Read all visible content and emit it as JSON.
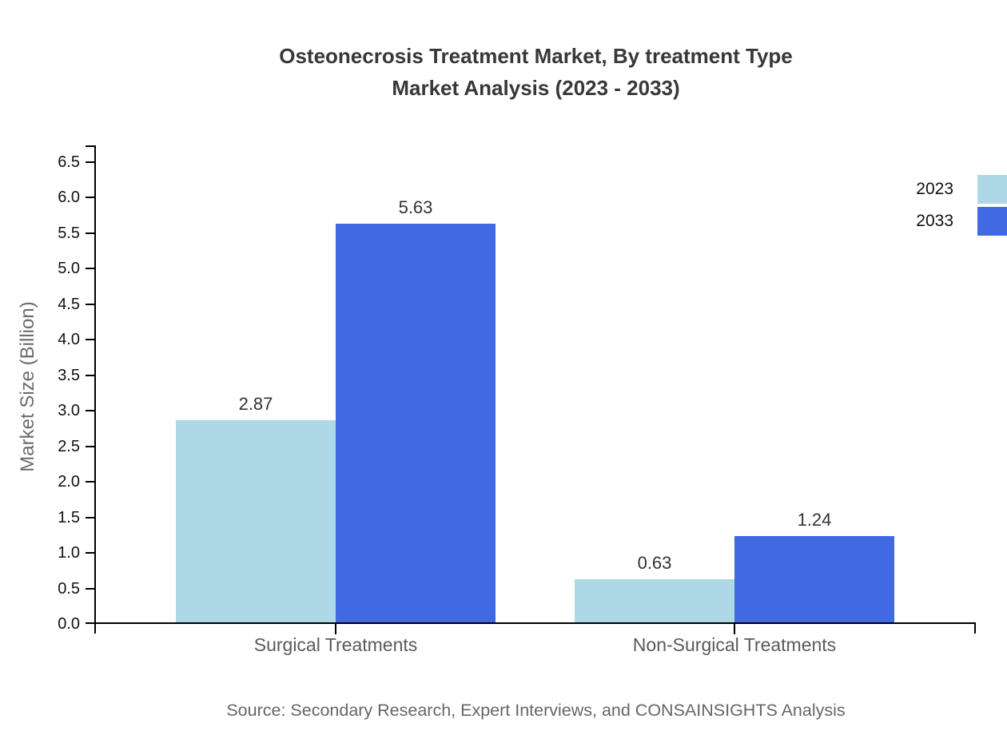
{
  "title": {
    "line1": "Osteonecrosis Treatment Market, By treatment Type",
    "line2": "Market Analysis (2023 - 2033)"
  },
  "source": "Source: Secondary Research, Expert Interviews, and CONSAINSIGHTS Analysis",
  "y_axis": {
    "label": "Market Size (Billion)"
  },
  "legend": [
    {
      "label": "2023",
      "color": "#ADD8E6"
    },
    {
      "label": "2033",
      "color": "#4169E1"
    }
  ],
  "chart_data": {
    "type": "bar",
    "title": "Osteonecrosis Treatment Market, By treatment Type Market Analysis (2023 - 2033)",
    "categories": [
      "Surgical Treatments",
      "Non-Surgical Treatments"
    ],
    "series": [
      {
        "name": "2023",
        "color": "#ADD8E6",
        "values": [
          2.87,
          0.63
        ]
      },
      {
        "name": "2033",
        "color": "#4169E1",
        "values": [
          5.63,
          1.24
        ]
      }
    ],
    "xlabel": "",
    "ylabel": "Market Size (Billion)",
    "ylim": [
      0,
      6.5
    ],
    "ytick_step": 0.5,
    "ytick_labels": [
      "0.0",
      "0.5",
      "1.0",
      "1.5",
      "2.0",
      "2.5",
      "3.0",
      "3.5",
      "4.0",
      "4.5",
      "5.0",
      "5.5",
      "6.0",
      "6.5"
    ],
    "grid": false,
    "legend_position": "top-right",
    "value_label_format": "2-decimals"
  }
}
